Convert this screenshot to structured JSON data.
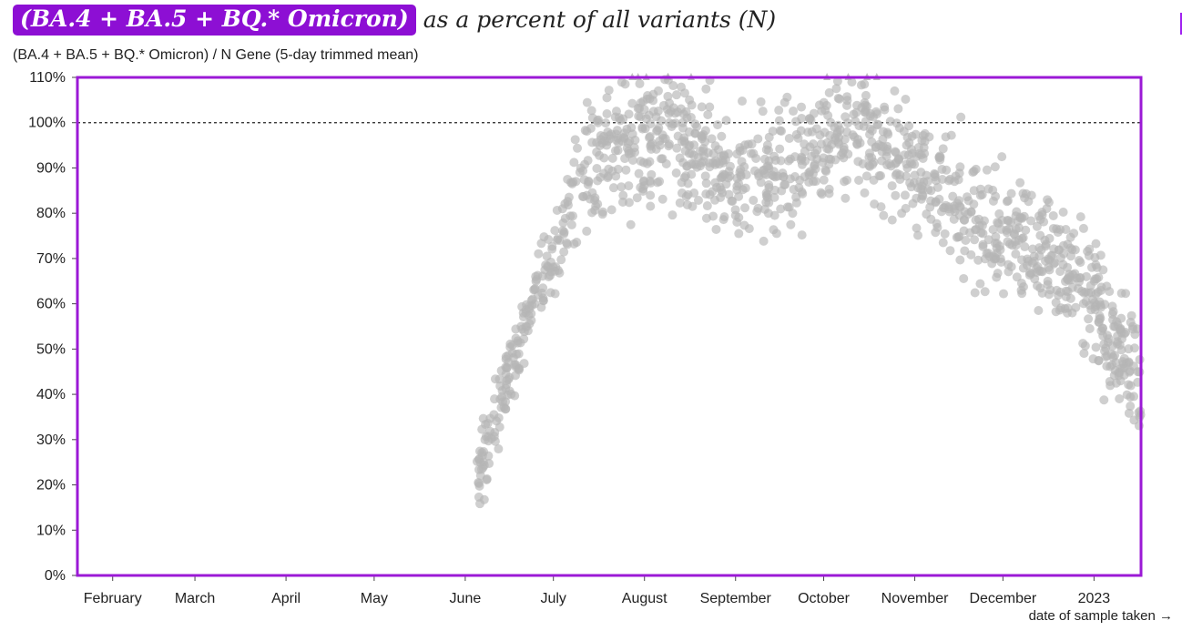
{
  "header": {
    "title_badge": "(BA.4 + BA.5 + BQ.* Omicron)",
    "title_rest": "as a percent of all variants (N)",
    "y_axis_label": "(BA.4 + BA.5 + BQ.* Omicron) / N Gene (5-day trimmed mean)"
  },
  "colors": {
    "frame": "#9b19d6",
    "badge": "#8d0fd4",
    "point": "#b5b5b5",
    "reference_line": "#222222"
  },
  "chart_data": {
    "type": "scatter",
    "title": "(BA.4 + BA.5 + BQ.* Omicron) as a percent of all variants (N)",
    "ylabel": "(BA.4 + BA.5 + BQ.* Omicron) / N Gene (5-day trimmed mean)",
    "xlabel": "date of sample taken →",
    "xlim": [
      "2022-01-20",
      "2023-01-17"
    ],
    "ylim": [
      0,
      110
    ],
    "reference_line_y": 100,
    "clipped_marker": "triangle at 110% for values above range",
    "y_ticks": [
      "0%",
      "10%",
      "20%",
      "30%",
      "40%",
      "50%",
      "60%",
      "70%",
      "80%",
      "90%",
      "100%",
      "110%"
    ],
    "x_ticks": [
      {
        "date": "2022-02-01",
        "label": "February"
      },
      {
        "date": "2022-03-01",
        "label": "March"
      },
      {
        "date": "2022-04-01",
        "label": "April"
      },
      {
        "date": "2022-05-01",
        "label": "May"
      },
      {
        "date": "2022-06-01",
        "label": "June"
      },
      {
        "date": "2022-07-01",
        "label": "July"
      },
      {
        "date": "2022-08-01",
        "label": "August"
      },
      {
        "date": "2022-09-01",
        "label": "September"
      },
      {
        "date": "2022-10-01",
        "label": "October"
      },
      {
        "date": "2022-11-01",
        "label": "November"
      },
      {
        "date": "2022-12-01",
        "label": "December"
      },
      {
        "date": "2023-01-01",
        "label": "2023"
      }
    ],
    "series": [
      {
        "trend": [
          {
            "x": "2022-06-05",
            "y": 23
          },
          {
            "x": "2022-06-09",
            "y": 28
          },
          {
            "x": "2022-06-13",
            "y": 38
          },
          {
            "x": "2022-06-17",
            "y": 47
          },
          {
            "x": "2022-06-21",
            "y": 55
          },
          {
            "x": "2022-06-25",
            "y": 62
          },
          {
            "x": "2022-06-30",
            "y": 70
          },
          {
            "x": "2022-07-07",
            "y": 80
          },
          {
            "x": "2022-07-15",
            "y": 90
          },
          {
            "x": "2022-07-25",
            "y": 95
          },
          {
            "x": "2022-08-05",
            "y": 98
          },
          {
            "x": "2022-08-15",
            "y": 96
          },
          {
            "x": "2022-08-25",
            "y": 90
          },
          {
            "x": "2022-09-05",
            "y": 87
          },
          {
            "x": "2022-09-15",
            "y": 88
          },
          {
            "x": "2022-09-25",
            "y": 92
          },
          {
            "x": "2022-10-05",
            "y": 97
          },
          {
            "x": "2022-10-15",
            "y": 98
          },
          {
            "x": "2022-10-25",
            "y": 93
          },
          {
            "x": "2022-11-05",
            "y": 87
          },
          {
            "x": "2022-11-15",
            "y": 83
          },
          {
            "x": "2022-11-25",
            "y": 78
          },
          {
            "x": "2022-12-05",
            "y": 75
          },
          {
            "x": "2022-12-15",
            "y": 73
          },
          {
            "x": "2022-12-25",
            "y": 68
          },
          {
            "x": "2023-01-01",
            "y": 62
          },
          {
            "x": "2023-01-07",
            "y": 52
          },
          {
            "x": "2023-01-13",
            "y": 45
          },
          {
            "x": "2023-01-17",
            "y": 42
          }
        ]
      }
    ]
  }
}
